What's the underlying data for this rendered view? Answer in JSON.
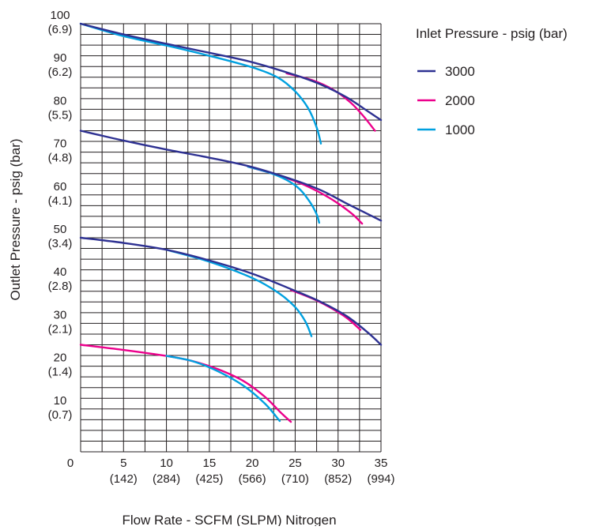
{
  "chart_data": {
    "type": "line",
    "title": "",
    "xlabel": "Flow Rate - SCFM (SLPM) Nitrogen",
    "ylabel": "Outlet Pressure - psig (bar)",
    "xlim": [
      0,
      35
    ],
    "ylim": [
      0,
      100
    ],
    "grid": true,
    "legend_title": "Inlet Pressure - psig (bar)",
    "legend_position": "right",
    "x_ticks": [
      {
        "value": 0,
        "label": "0",
        "sub": ""
      },
      {
        "value": 5,
        "label": "5",
        "sub": "(142)"
      },
      {
        "value": 10,
        "label": "10",
        "sub": "(284)"
      },
      {
        "value": 15,
        "label": "15",
        "sub": "(425)"
      },
      {
        "value": 20,
        "label": "20",
        "sub": "(566)"
      },
      {
        "value": 25,
        "label": "25",
        "sub": "(710)"
      },
      {
        "value": 30,
        "label": "30",
        "sub": "(852)"
      },
      {
        "value": 35,
        "label": "35",
        "sub": "(994)"
      }
    ],
    "y_ticks": [
      {
        "value": 10,
        "label": "10",
        "sub": "(0.7)"
      },
      {
        "value": 20,
        "label": "20",
        "sub": "(1.4)"
      },
      {
        "value": 30,
        "label": "30",
        "sub": "(2.1)"
      },
      {
        "value": 40,
        "label": "40",
        "sub": "(2.8)"
      },
      {
        "value": 50,
        "label": "50",
        "sub": "(3.4)"
      },
      {
        "value": 60,
        "label": "60",
        "sub": "(4.1)"
      },
      {
        "value": 70,
        "label": "70",
        "sub": "(4.8)"
      },
      {
        "value": 80,
        "label": "80",
        "sub": "(5.5)"
      },
      {
        "value": 90,
        "label": "90",
        "sub": "(6.2)"
      },
      {
        "value": 100,
        "label": "100",
        "sub": "(6.9)"
      }
    ],
    "series": [
      {
        "name": "3000",
        "color": "#2e3192",
        "curves": [
          [
            [
              0,
              100
            ],
            [
              5,
              97.5
            ],
            [
              10,
              95.3
            ],
            [
              15,
              93.2
            ],
            [
              20,
              91
            ],
            [
              25,
              88
            ],
            [
              28,
              85.8
            ],
            [
              31,
              82.8
            ],
            [
              33.5,
              79.5
            ],
            [
              35,
              77.5
            ]
          ],
          [
            [
              0,
              75
            ],
            [
              5,
              72.7
            ],
            [
              10,
              70.6
            ],
            [
              15,
              68.7
            ],
            [
              20,
              66.5
            ],
            [
              25,
              63.4
            ],
            [
              28,
              61.1
            ],
            [
              31,
              58
            ],
            [
              33.5,
              55.5
            ],
            [
              35,
              54
            ]
          ],
          [
            [
              0,
              50
            ],
            [
              5,
              48.8
            ],
            [
              10,
              47.2
            ],
            [
              15,
              44.7
            ],
            [
              20,
              41.6
            ],
            [
              25,
              37.6
            ],
            [
              28,
              35
            ],
            [
              31,
              31.7
            ],
            [
              33.5,
              27.8
            ],
            [
              35,
              25
            ]
          ]
        ]
      },
      {
        "name": "2000",
        "color": "#ec008c",
        "curves": [
          [
            [
              24,
              88.4
            ],
            [
              27,
              86.8
            ],
            [
              29.5,
              84.5
            ],
            [
              31.5,
              81.5
            ],
            [
              33,
              78.3
            ],
            [
              34.3,
              75
            ]
          ],
          [
            [
              19.5,
              66.6
            ],
            [
              23,
              64.6
            ],
            [
              26,
              62.4
            ],
            [
              29,
              59.3
            ],
            [
              31.5,
              55.8
            ],
            [
              32.8,
              53.3
            ]
          ],
          [
            [
              24.5,
              37.8
            ],
            [
              27,
              35.8
            ],
            [
              29,
              33.8
            ],
            [
              31,
              31.3
            ],
            [
              32.6,
              28.5
            ]
          ],
          [
            [
              0,
              25
            ],
            [
              5,
              23.8
            ],
            [
              10,
              22.4
            ],
            [
              13,
              21.2
            ],
            [
              16,
              19.3
            ],
            [
              19,
              16.5
            ],
            [
              21.5,
              12.8
            ],
            [
              23.3,
              9.2
            ],
            [
              24.5,
              7
            ]
          ]
        ]
      },
      {
        "name": "1000",
        "color": "#00a0df",
        "curves": [
          [
            [
              0,
              100
            ],
            [
              5,
              97.1
            ],
            [
              10,
              94.9
            ],
            [
              15,
              92.5
            ],
            [
              20,
              89.8
            ],
            [
              23,
              87.4
            ],
            [
              25,
              84.2
            ],
            [
              26.5,
              80.3
            ],
            [
              27.5,
              75.8
            ],
            [
              28,
              72
            ]
          ],
          [
            [
              19.5,
              66.6
            ],
            [
              22,
              65.2
            ],
            [
              24,
              63.5
            ],
            [
              25.5,
              61.4
            ],
            [
              26.7,
              58.4
            ],
            [
              27.5,
              55.5
            ],
            [
              27.8,
              53.5
            ]
          ],
          [
            [
              10,
              47.2
            ],
            [
              15,
              44.4
            ],
            [
              20,
              40.6
            ],
            [
              23,
              37.2
            ],
            [
              25,
              33.8
            ],
            [
              26.2,
              30.4
            ],
            [
              26.9,
              27
            ]
          ],
          [
            [
              10,
              22.4
            ],
            [
              13,
              21.2
            ],
            [
              16,
              18.8
            ],
            [
              19,
              15.4
            ],
            [
              21.5,
              11.2
            ],
            [
              23.2,
              7.2
            ]
          ]
        ]
      }
    ]
  }
}
